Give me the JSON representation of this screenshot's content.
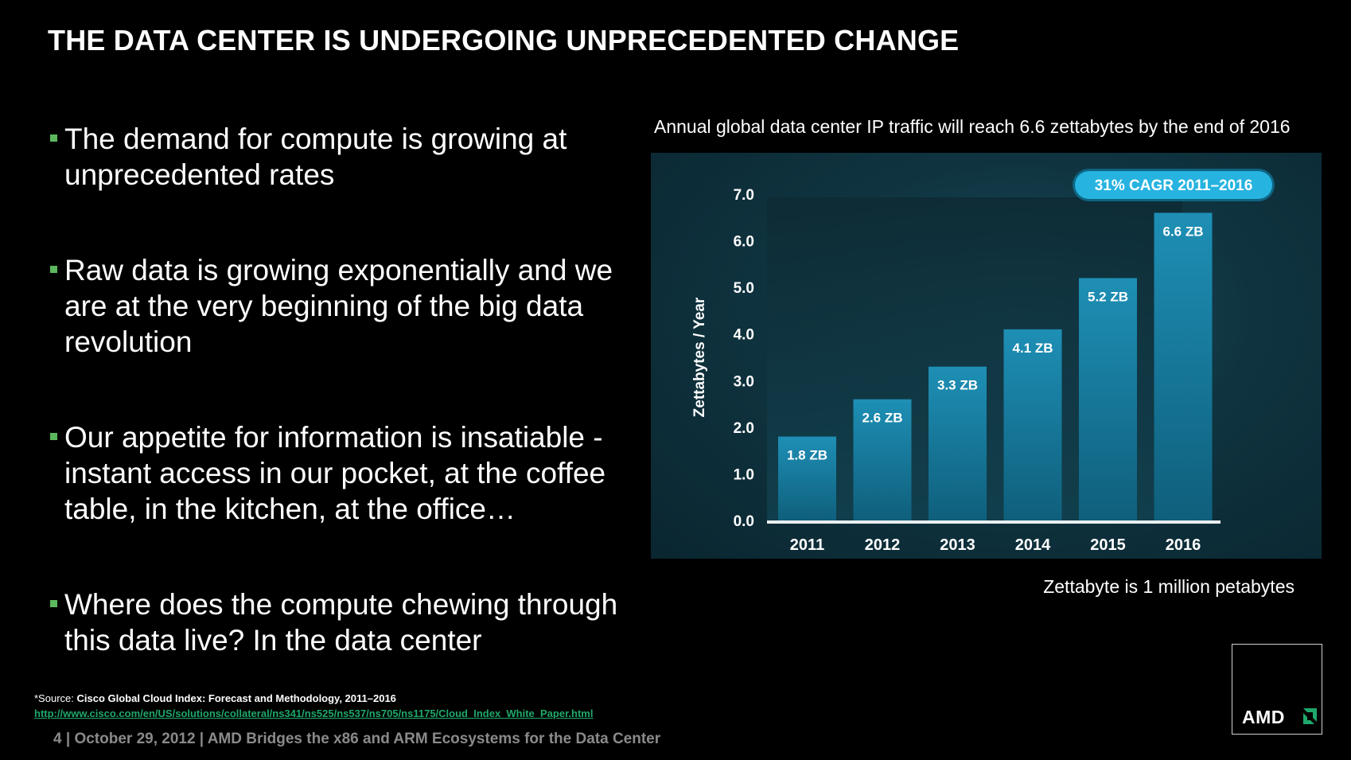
{
  "slide": {
    "title": "THE DATA CENTER IS UNDERGOING UNPRECEDENTED CHANGE",
    "bullets": [
      "The demand for compute is growing at unprecedented rates",
      "Raw data is growing exponentially and we are at the very beginning of the big data revolution",
      "Our appetite for information is insatiable - instant access in our pocket, at the coffee table, in the kitchen, at the office…",
      "Where does the compute chewing through this data live? In the data center"
    ],
    "bullet_color": "#5cb85c",
    "chart_caption": "Annual global data center IP traffic will reach 6.6 zettabytes by the end of 2016",
    "note": "Zettabyte  is 1 million petabytes",
    "source_prefix": "*Source: ",
    "source_title": "Cisco Global Cloud Index: Forecast and Methodology, 2011–2016",
    "source_url": "http://www.cisco.com/en/US/solutions/collateral/ns341/ns525/ns537/ns705/ns1175/Cloud_Index_White_Paper.html",
    "footer": "4  |  October 29, 2012  |  AMD Bridges the x86 and ARM Ecosystems for the Data Center",
    "logo": "AMD"
  },
  "chart_data": {
    "type": "bar",
    "categories": [
      "2011",
      "2012",
      "2013",
      "2014",
      "2015",
      "2016"
    ],
    "values": [
      1.8,
      2.6,
      3.3,
      4.1,
      5.2,
      6.6
    ],
    "data_labels": [
      "1.8 ZB",
      "2.6 ZB",
      "3.3 ZB",
      "4.1 ZB",
      "5.2 ZB",
      "6.6 ZB"
    ],
    "ylabel": "Zettabytes / Year",
    "ylim": [
      0,
      7
    ],
    "yticks": [
      "0.0",
      "1.0",
      "2.0",
      "3.0",
      "4.0",
      "5.0",
      "6.0",
      "7.0"
    ],
    "badge": "31% CAGR 2011–2016",
    "bar_color": "#1e8fb5",
    "badge_color": "#26b3e0"
  }
}
